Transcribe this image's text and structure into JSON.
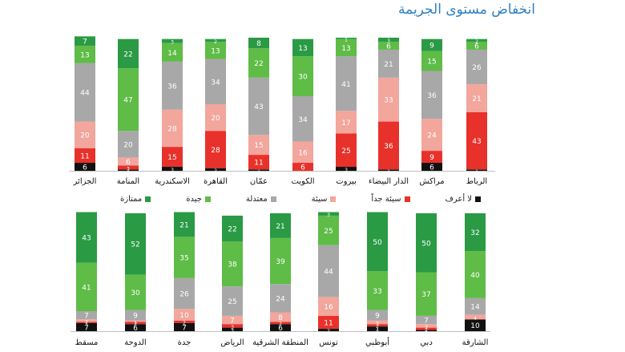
{
  "title": "انخفاض مستوى الجريمة",
  "colors": {
    "excellent": "#2a9a45",
    "good": "#5ebc47",
    "moderate": "#a8a8a8",
    "bad": "#f2a69c",
    "very_bad": "#e8312b",
    "dont_know": "#111111",
    "title": "#2e7fc0"
  },
  "legend": [
    {
      "key": "excellent",
      "label": "ممتازة"
    },
    {
      "key": "good",
      "label": "جيدة"
    },
    {
      "key": "moderate",
      "label": "معتدلة"
    },
    {
      "key": "bad",
      "label": "سيئة"
    },
    {
      "key": "very_bad",
      "label": "سيئة جداً"
    },
    {
      "key": "dont_know",
      "label": "لا أعرف"
    }
  ],
  "chart_data": [
    {
      "type": "bar",
      "stacked": true,
      "ylim": [
        0,
        100
      ],
      "categories": [
        "الرباط",
        "مراكش",
        "الدار البيضاء",
        "بيروت",
        "الكويت",
        "عمّان",
        "القاهرة",
        "الاسكندرية",
        "المنامة",
        "الجزائر"
      ],
      "series": [
        {
          "name": "لا أعرف",
          "key": "dont_know",
          "values": [
            1,
            6,
            1,
            3,
            0,
            1,
            2,
            3,
            1,
            6
          ]
        },
        {
          "name": "سيئة جداً",
          "key": "very_bad",
          "values": [
            43,
            9,
            36,
            25,
            6,
            11,
            28,
            15,
            3,
            11
          ]
        },
        {
          "name": "سيئة",
          "key": "bad",
          "values": [
            21,
            24,
            33,
            17,
            16,
            15,
            20,
            28,
            6,
            20
          ]
        },
        {
          "name": "معتدلة",
          "key": "moderate",
          "values": [
            26,
            36,
            21,
            41,
            34,
            43,
            34,
            36,
            20,
            44
          ]
        },
        {
          "name": "جيدة",
          "key": "good",
          "values": [
            6,
            15,
            6,
            13,
            30,
            22,
            13,
            14,
            47,
            13
          ]
        },
        {
          "name": "ممتازة",
          "key": "excellent",
          "values": [
            2,
            9,
            3,
            1,
            13,
            8,
            2,
            3,
            22,
            7
          ]
        }
      ]
    },
    {
      "type": "bar",
      "stacked": true,
      "ylim": [
        0,
        100
      ],
      "categories": [
        "الشارقة",
        "دبي",
        "أبوظبي",
        "تونس",
        "المنطقة الشرقية",
        "الرياض",
        "جدة",
        "الدوحة",
        "مسقط"
      ],
      "series": [
        {
          "name": "لا أعرف",
          "key": "dont_know",
          "values": [
            10,
            1,
            4,
            2,
            6,
            3,
            7,
            6,
            7
          ]
        },
        {
          "name": "سيئة جداً",
          "key": "very_bad",
          "values": [
            0,
            2,
            2,
            11,
            2,
            3,
            2,
            2,
            1
          ]
        },
        {
          "name": "سيئة",
          "key": "bad",
          "values": [
            4,
            3,
            3,
            16,
            8,
            7,
            10,
            1,
            2
          ]
        },
        {
          "name": "معتدلة",
          "key": "moderate",
          "values": [
            14,
            7,
            9,
            44,
            24,
            25,
            26,
            9,
            7
          ]
        },
        {
          "name": "جيدة",
          "key": "good",
          "values": [
            40,
            37,
            33,
            25,
            39,
            38,
            35,
            30,
            41
          ]
        },
        {
          "name": "ممتازة",
          "key": "excellent",
          "values": [
            32,
            50,
            50,
            3,
            21,
            22,
            21,
            52,
            43
          ]
        }
      ]
    }
  ]
}
